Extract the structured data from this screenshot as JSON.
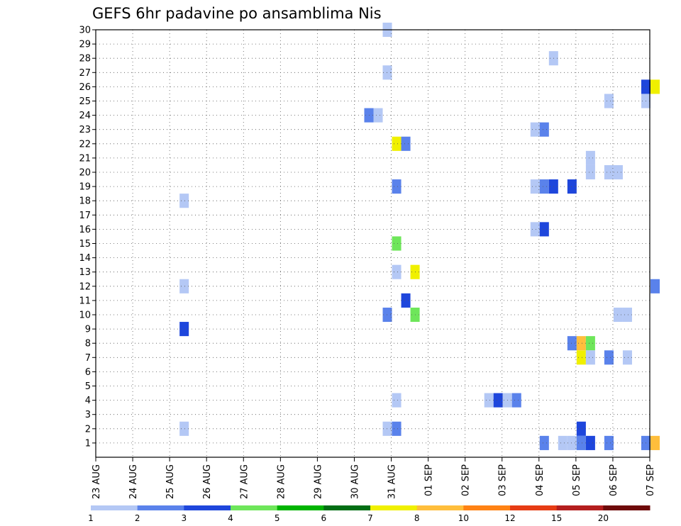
{
  "chart_data": {
    "type": "heatmap",
    "title": "GEFS 6hr padavine po ansamblima Nis",
    "xlabel": "",
    "ylabel": "",
    "x_ticks": [
      "23 AUG",
      "24 AUG",
      "25 AUG",
      "26 AUG",
      "27 AUG",
      "28 AUG",
      "29 AUG",
      "30 AUG",
      "31 AUG",
      "01 SEP",
      "02 SEP",
      "03 SEP",
      "04 SEP",
      "05 SEP",
      "06 SEP",
      "07 SEP"
    ],
    "xlim": [
      "23 AUG",
      "07 SEP"
    ],
    "y_ticks": [
      1,
      2,
      3,
      4,
      5,
      6,
      7,
      8,
      9,
      10,
      11,
      12,
      13,
      14,
      15,
      16,
      17,
      18,
      19,
      20,
      21,
      22,
      23,
      24,
      25,
      26,
      27,
      28,
      29,
      30
    ],
    "ylim": [
      0,
      30
    ],
    "grid": true,
    "colorbar": {
      "bounds": [
        1,
        2,
        3,
        4,
        5,
        6,
        7,
        8,
        10,
        12,
        15,
        20
      ],
      "labels": [
        "1",
        "2",
        "3",
        "4",
        "5",
        "6",
        "7",
        "8",
        "10",
        "12",
        "15",
        "20"
      ],
      "colors": [
        "#b4c8f5",
        "#5a82eb",
        "#1e46dc",
        "#6ee65a",
        "#00b400",
        "#006e14",
        "#f0f000",
        "#ffbe3c",
        "#ff8214",
        "#e63c14",
        "#b41e1e",
        "#6e0a0a"
      ]
    },
    "cells": [
      {
        "x": "25 AUG 06Z",
        "member": 18,
        "value": 1.5
      },
      {
        "x": "25 AUG 06Z",
        "member": 12,
        "value": 1.5
      },
      {
        "x": "25 AUG 06Z",
        "member": 9,
        "value": 3.5
      },
      {
        "x": "25 AUG 06Z",
        "member": 2,
        "value": 1.5
      },
      {
        "x": "30 AUG 18Z",
        "member": 30,
        "value": 1.5
      },
      {
        "x": "30 AUG 18Z",
        "member": 27,
        "value": 1.5
      },
      {
        "x": "30 AUG 18Z",
        "member": 10,
        "value": 2.5
      },
      {
        "x": "30 AUG 18Z",
        "member": 2,
        "value": 1.5
      },
      {
        "x": "30 AUG 06Z",
        "member": 24,
        "value": 2.5
      },
      {
        "x": "30 AUG 12Z",
        "member": 24,
        "value": 1.5
      },
      {
        "x": "31 AUG 00Z",
        "member": 22,
        "value": 7.5
      },
      {
        "x": "31 AUG 06Z",
        "member": 22,
        "value": 2.5
      },
      {
        "x": "31 AUG 00Z",
        "member": 19,
        "value": 2.5
      },
      {
        "x": "31 AUG 00Z",
        "member": 15,
        "value": 4.5
      },
      {
        "x": "31 AUG 00Z",
        "member": 13,
        "value": 1.5
      },
      {
        "x": "31 AUG 12Z",
        "member": 13,
        "value": 7.5
      },
      {
        "x": "31 AUG 06Z",
        "member": 11,
        "value": 3.5
      },
      {
        "x": "31 AUG 12Z",
        "member": 10,
        "value": 4.5
      },
      {
        "x": "31 AUG 00Z",
        "member": 4,
        "value": 1.5
      },
      {
        "x": "31 AUG 00Z",
        "member": 2,
        "value": 2.5
      },
      {
        "x": "02 SEP 12Z",
        "member": 4,
        "value": 1.5
      },
      {
        "x": "02 SEP 18Z",
        "member": 4,
        "value": 3.5
      },
      {
        "x": "03 SEP 00Z",
        "member": 4,
        "value": 1.5
      },
      {
        "x": "03 SEP 06Z",
        "member": 4,
        "value": 2.5
      },
      {
        "x": "04 SEP 06Z",
        "member": 28,
        "value": 1.5
      },
      {
        "x": "03 SEP 18Z",
        "member": 23,
        "value": 1.5
      },
      {
        "x": "04 SEP 00Z",
        "member": 23,
        "value": 2.5
      },
      {
        "x": "03 SEP 18Z",
        "member": 19,
        "value": 1.5
      },
      {
        "x": "04 SEP 00Z",
        "member": 19,
        "value": 2.5
      },
      {
        "x": "04 SEP 06Z",
        "member": 19,
        "value": 3.5
      },
      {
        "x": "03 SEP 18Z",
        "member": 16,
        "value": 1.5
      },
      {
        "x": "04 SEP 00Z",
        "member": 16,
        "value": 3.5
      },
      {
        "x": "04 SEP 00Z",
        "member": 1,
        "value": 2.5
      },
      {
        "x": "04 SEP 18Z",
        "member": 19,
        "value": 3.5
      },
      {
        "x": "04 SEP 18Z",
        "member": 8,
        "value": 2.5
      },
      {
        "x": "05 SEP 00Z",
        "member": 8,
        "value": 9
      },
      {
        "x": "05 SEP 06Z",
        "member": 8,
        "value": 4.5
      },
      {
        "x": "05 SEP 00Z",
        "member": 7,
        "value": 7.5
      },
      {
        "x": "05 SEP 06Z",
        "member": 7,
        "value": 1.5
      },
      {
        "x": "05 SEP 00Z",
        "member": 2,
        "value": 3.5
      },
      {
        "x": "04 SEP 12Z",
        "member": 1,
        "value": 1.5
      },
      {
        "x": "04 SEP 18Z",
        "member": 1,
        "value": 1.5
      },
      {
        "x": "05 SEP 00Z",
        "member": 1,
        "value": 2.5
      },
      {
        "x": "05 SEP 06Z",
        "member": 1,
        "value": 3.5
      },
      {
        "x": "05 SEP 06Z",
        "member": 21,
        "value": 1.5
      },
      {
        "x": "05 SEP 06Z",
        "member": 20,
        "value": 1.5
      },
      {
        "x": "05 SEP 18Z",
        "member": 25,
        "value": 1.5
      },
      {
        "x": "05 SEP 18Z",
        "member": 20,
        "value": 1.5
      },
      {
        "x": "06 SEP 00Z",
        "member": 20,
        "value": 1.5
      },
      {
        "x": "05 SEP 18Z",
        "member": 7,
        "value": 2.5
      },
      {
        "x": "05 SEP 18Z",
        "member": 1,
        "value": 2.5
      },
      {
        "x": "06 SEP 00Z",
        "member": 10,
        "value": 1.5
      },
      {
        "x": "06 SEP 06Z",
        "member": 10,
        "value": 1.5
      },
      {
        "x": "06 SEP 06Z",
        "member": 7,
        "value": 1.5
      },
      {
        "x": "06 SEP 18Z",
        "member": 26,
        "value": 3.5
      },
      {
        "x": "07 SEP 00Z",
        "member": 26,
        "value": 7.5
      },
      {
        "x": "06 SEP 18Z",
        "member": 25,
        "value": 1.5
      },
      {
        "x": "07 SEP 00Z",
        "member": 12,
        "value": 2.5
      },
      {
        "x": "06 SEP 18Z",
        "member": 1,
        "value": 2.5
      },
      {
        "x": "07 SEP 00Z",
        "member": 1,
        "value": 9
      }
    ]
  }
}
